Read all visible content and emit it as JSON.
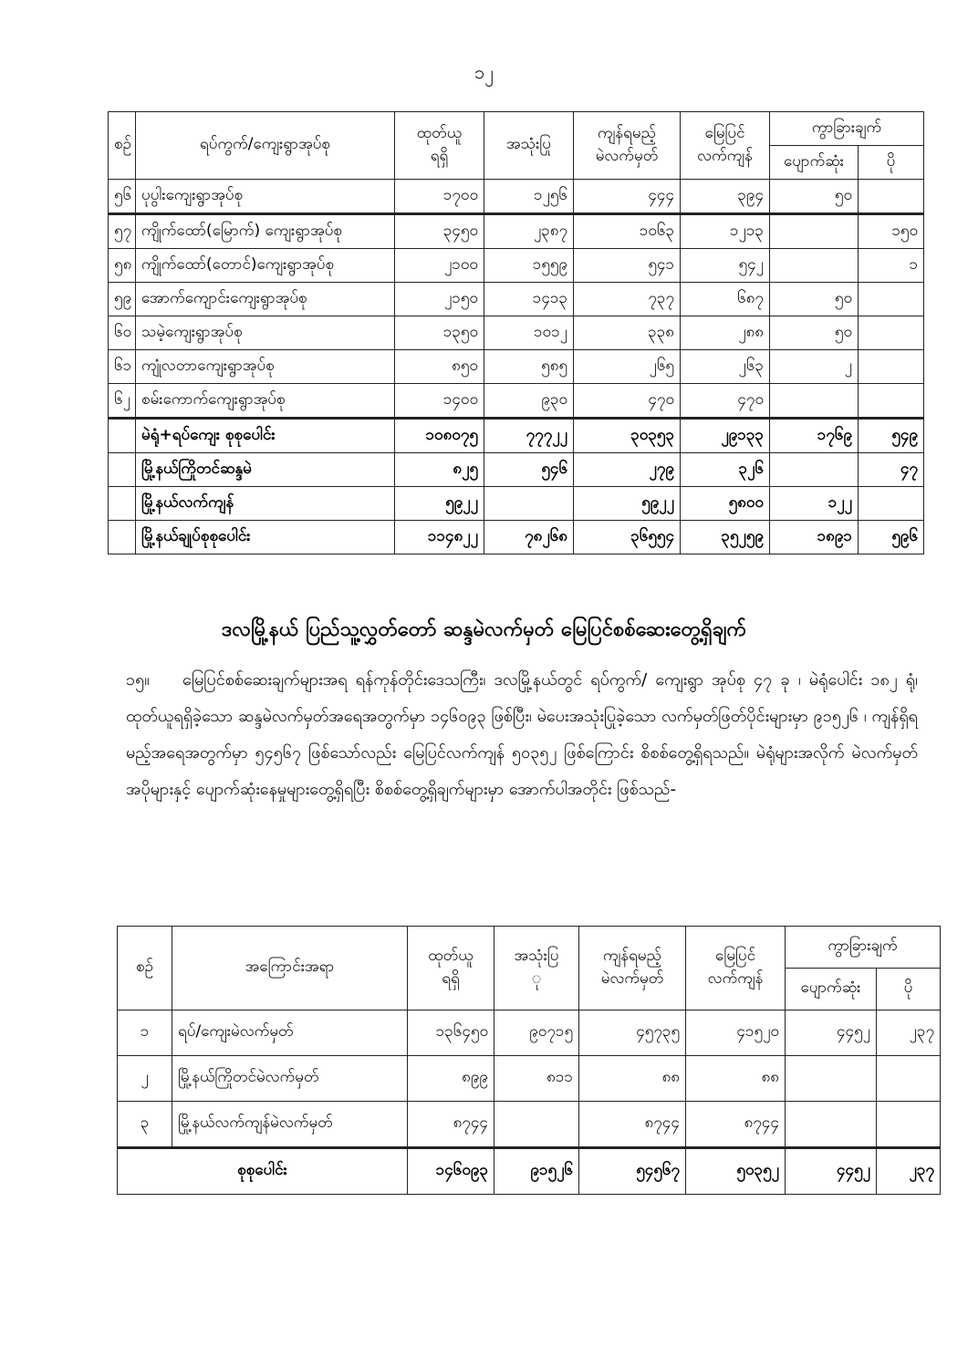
{
  "page_number": "၁၂",
  "table1": {
    "headers": {
      "no": "စဉ်",
      "name": "ရပ်ကွက်/ကျေးရွာအုပ်စု",
      "issued": [
        "ထုတ်ယူ",
        "ရရှိ"
      ],
      "used": "အသုံးပြု",
      "should_remain": [
        "ကျန်ရမည့်",
        "မဲလက်မှတ်"
      ],
      "ground_remain": [
        "မြေပြင်",
        "လက်ကျန်"
      ],
      "difference": "ကွာခြားချက်",
      "missing": "ပျောက်ဆုံး",
      "excess": "ပို"
    },
    "rows": [
      {
        "no": "၅၆",
        "name": "ပုပွါးကျေးရွာအုပ်စု",
        "issued": "၁၇၀၀",
        "used": "၁၂၅၆",
        "should_remain": "၄၄၄",
        "ground_remain": "၃၉၄",
        "missing": "၅၀",
        "excess": ""
      },
      {
        "no": "၅၇",
        "name": "ကျိုက်ထော်(မြောက်) ကျေးရွာအုပ်စု",
        "issued": "၃၄၅၀",
        "used": "၂၃၈၇",
        "should_remain": "၁၀၆၃",
        "ground_remain": "၁၂၁၃",
        "missing": "",
        "excess": "၁၅၀"
      },
      {
        "no": "၅၈",
        "name": "ကျိုက်ထော်(တောင်)ကျေးရွာအုပ်စု",
        "issued": "၂၁၀၀",
        "used": "၁၅၅၉",
        "should_remain": "၅၄၁",
        "ground_remain": "၅၄၂",
        "missing": "",
        "excess": "၁"
      },
      {
        "no": "၅၉",
        "name": "အောက်ကျောင်းကျေးရွာအုပ်စု",
        "issued": "၂၁၅၀",
        "used": "၁၄၁၃",
        "should_remain": "၇၃၇",
        "ground_remain": "၆၈၇",
        "missing": "၅၀",
        "excess": ""
      },
      {
        "no": "၆၀",
        "name": "သမဲ့ကျေးရွာအုပ်စု",
        "issued": "၁၃၅၀",
        "used": "၁၀၁၂",
        "should_remain": "၃၃၈",
        "ground_remain": "၂၈၈",
        "missing": "၅၀",
        "excess": ""
      },
      {
        "no": "၆၁",
        "name": "ကျုံလတာကျေးရွာအုပ်စု",
        "issued": "၈၅၀",
        "used": "၅၈၅",
        "should_remain": "၂၆၅",
        "ground_remain": "၂၆၃",
        "missing": "၂",
        "excess": ""
      },
      {
        "no": "၆၂",
        "name": "စမ်းကောက်ကျေးရွာအုပ်စု",
        "issued": "၁၄၀၀",
        "used": "၉၃၀",
        "should_remain": "၄၇၀",
        "ground_remain": "၄၇၀",
        "missing": "",
        "excess": ""
      },
      {
        "no": "",
        "name": "မဲရုံ+ရပ်ကျေး စုစုပေါင်း",
        "issued": "၁၀၈၀၇၅",
        "used": "၇၇၇၂၂",
        "should_remain": "၃၀၃၅၃",
        "ground_remain": "၂၉၁၃၃",
        "missing": "၁၇၆၉",
        "excess": "၅၄၉",
        "bold": true
      },
      {
        "no": "",
        "name": "မြို့နယ်ကြိုတင်ဆန္ဒမဲ",
        "issued": "၈၂၅",
        "used": "၅၄၆",
        "should_remain": "၂၇၉",
        "ground_remain": "၃၂၆",
        "missing": "",
        "excess": "၄၇",
        "bold": true
      },
      {
        "no": "",
        "name": "မြို့နယ်လက်ကျန်",
        "issued": "၅၉၂၂",
        "used": "",
        "should_remain": "၅၉၂၂",
        "ground_remain": "၅၈၀၀",
        "missing": "၁၂၂",
        "excess": "",
        "bold": true
      },
      {
        "no": "",
        "name": "မြို့နယ်ချုပ်စုစုပေါင်း",
        "issued": "၁၁၄၈၂၂",
        "used": "၇၈၂၆၈",
        "should_remain": "၃၆၅၅၄",
        "ground_remain": "၃၅၂၅၉",
        "missing": "၁၈၉၁",
        "excess": "၅၉၆",
        "bold": true
      }
    ]
  },
  "section_title": "ဒလမြို့နယ် ပြည်သူ့လွှတ်တော် ဆန္ဒမဲလက်မှတ် မြေပြင်စစ်ဆေးတွေ့ရှိချက်",
  "paragraph": {
    "number": "၁၅။",
    "text": "မြေပြင်စစ်ဆေးချက်များအရ ရန်ကုန်တိုင်းဒေသကြီး၊ ဒလမြို့နယ်တွင် ရပ်ကွက်/ ကျေးရွာ အုပ်စု ၄၇ ခု ၊ မဲရုံပေါင်း ၁၈၂ ရုံ၊ ထုတ်ယူရရှိခဲ့သော ဆန္ဒမဲလက်မှတ်အရေအတွက်မှာ ၁၄၆၀၉၃ ဖြစ်ပြီး၊ မဲပေးအသုံးပြုခဲ့သော လက်မှတ်ဖြတ်ပိုင်းများမှာ ၉၁၅၂၆ ၊ ကျန်ရှိရမည့်အရေအတွက်မှာ ၅၄၅၆၇ ဖြစ်သော်လည်း မြေပြင်လက်ကျန် ၅၀၃၅၂ ဖြစ်ကြောင်း စိစစ်တွေ့ရှိရသည်။ မဲရုံများအလိုက် မဲလက်မှတ်အပိုများနှင့် ပျောက်ဆုံးနေမှုများတွေ့ရှိရပြီး စိစစ်တွေ့ရှိချက်များမှာ အောက်ပါအတိုင်း ဖြစ်သည်-"
  },
  "table2": {
    "headers": {
      "no": "စဉ်",
      "name": "အကြောင်းအရာ",
      "issued": [
        "ထုတ်ယူ",
        "ရရှိ"
      ],
      "used": [
        "အသုံးပြ",
        "ု"
      ],
      "should_remain": [
        "ကျန်ရမည့်",
        "မဲလက်မှတ်"
      ],
      "ground_remain": [
        "မြေပြင်",
        "လက်ကျန်"
      ],
      "difference": "ကွာခြားချက်",
      "missing": "ပျောက်ဆုံး",
      "excess": "ပို"
    },
    "rows": [
      {
        "no": "၁",
        "name": "ရပ်/ကျေးမဲလက်မှတ်",
        "issued": "၁၃၆၄၅၀",
        "used": "၉၀၇၁၅",
        "should_remain": "၄၅၇၃၅",
        "ground_remain": "၄၁၅၂၀",
        "missing": "၄၄၅၂",
        "excess": "၂၃၇"
      },
      {
        "no": "၂",
        "name": "မြို့နယ်ကြိုတင်မဲလက်မှတ်",
        "issued": "၈၉၉",
        "used": "၈၁၁",
        "should_remain": "၈၈",
        "ground_remain": "၈၈",
        "missing": "",
        "excess": ""
      },
      {
        "no": "၃",
        "name": "မြို့နယ်လက်ကျန်မဲလက်မှတ်",
        "issued": "၈၇၄၄",
        "used": "",
        "should_remain": "၈၇၄၄",
        "ground_remain": "၈၇၄၄",
        "missing": "",
        "excess": ""
      }
    ],
    "total": {
      "label": "စုစုပေါင်း",
      "issued": "၁၄၆၀၉၃",
      "used": "၉၁၅၂၆",
      "should_remain": "၅၄၅၆၇",
      "ground_remain": "၅၀၃၅၂",
      "missing": "၄၄၅၂",
      "excess": "၂၃၇"
    }
  }
}
